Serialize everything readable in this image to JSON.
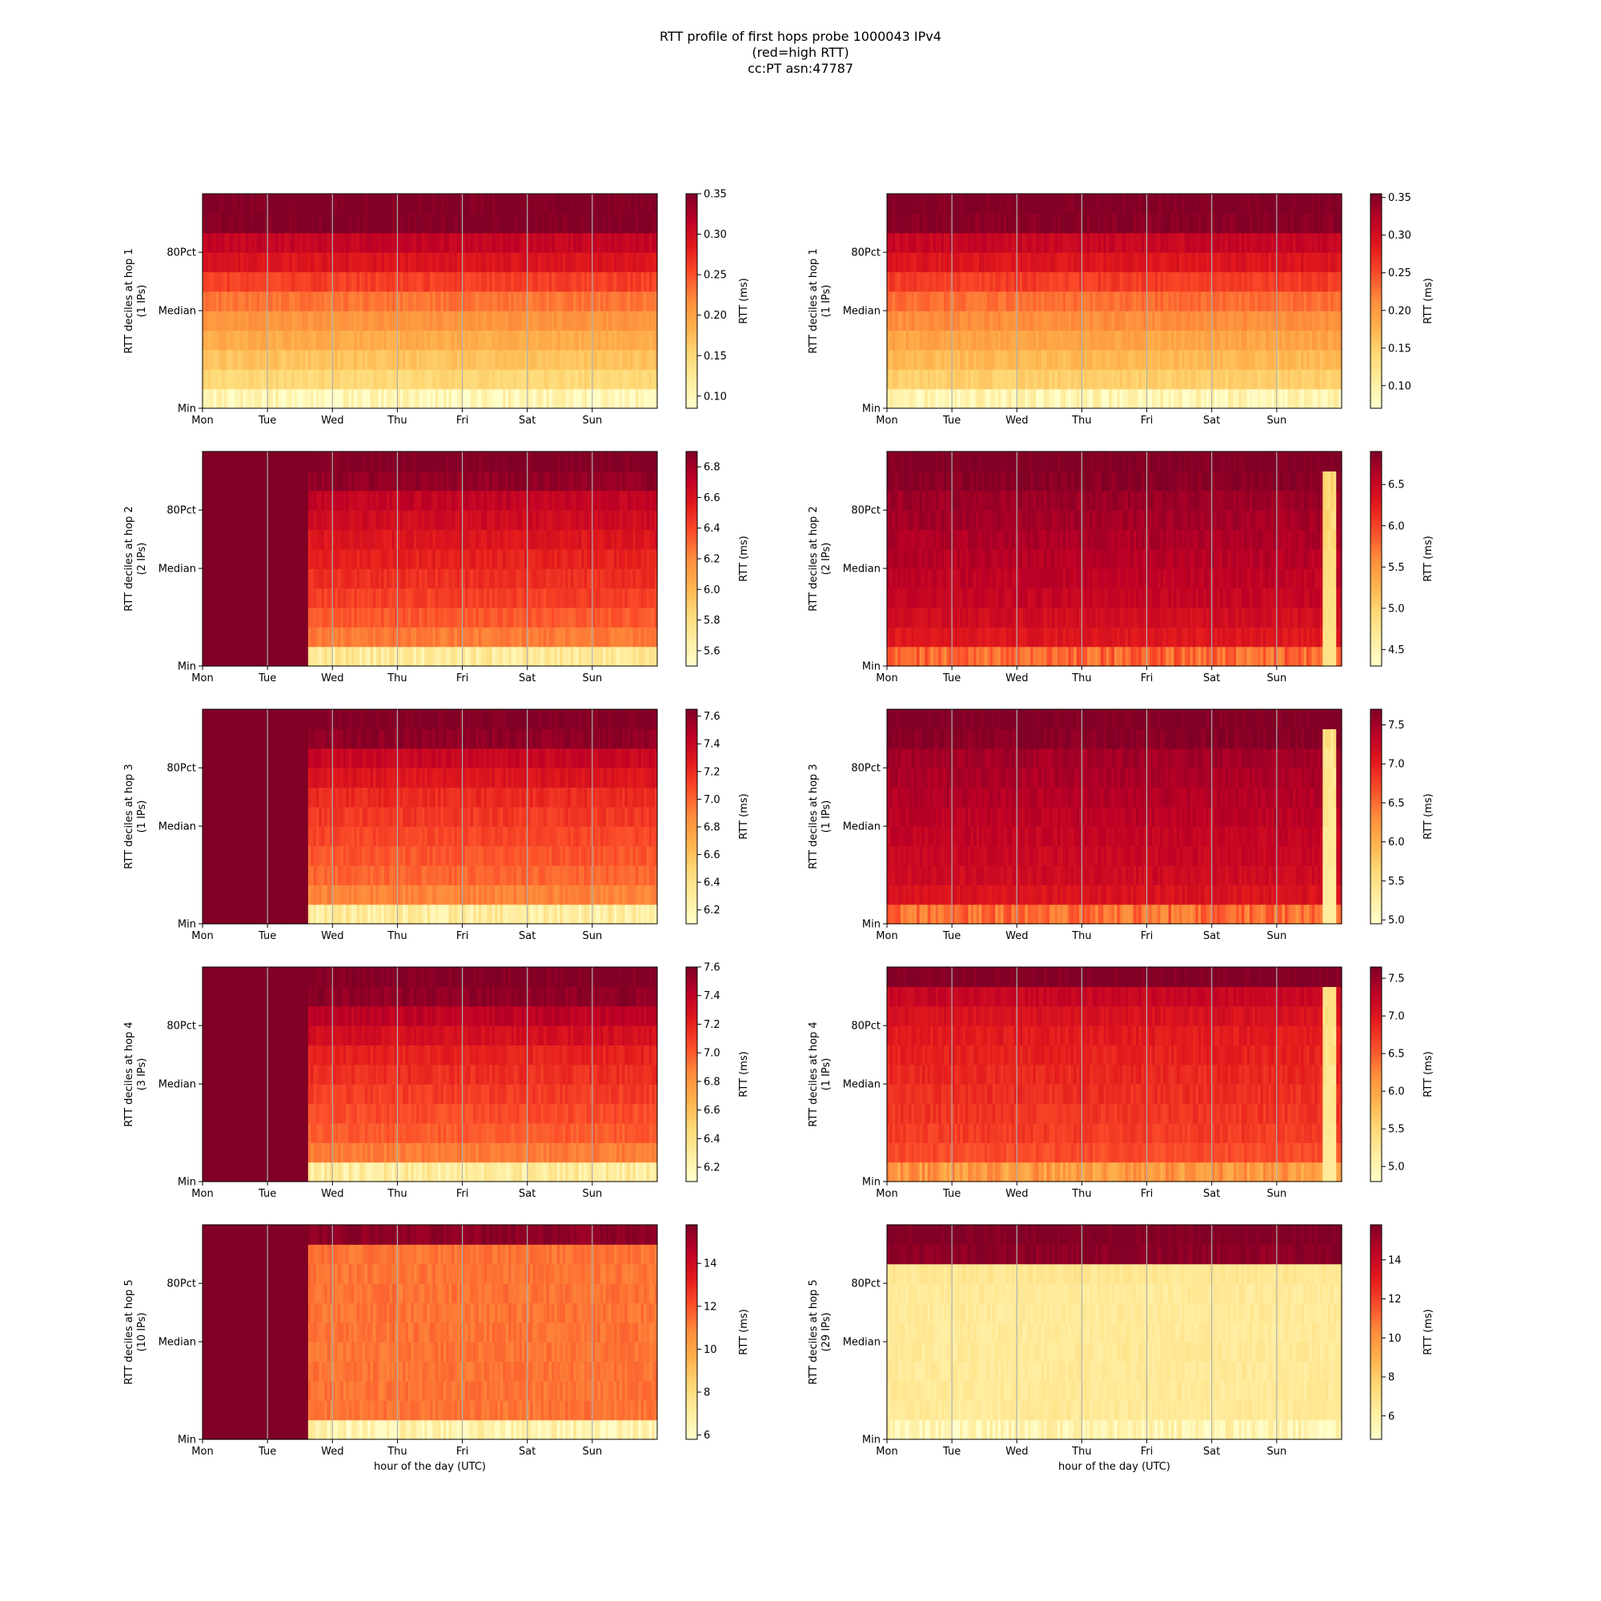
{
  "figure": {
    "title_lines": [
      "RTT profile of first hops probe 1000043 IPv4",
      "(red=high RTT)",
      "cc:PT asn:47787"
    ],
    "colormap": [
      "#ffffcc",
      "#ffeda0",
      "#fed976",
      "#feb24c",
      "#fd8d3c",
      "#fc4e2a",
      "#e31a1c",
      "#bd0026",
      "#800026"
    ],
    "grid_color": "#b0b0b0"
  },
  "chart_data": [
    {
      "type": "heatmap",
      "column": "left",
      "hop": 1,
      "ylabel": [
        "RTT deciles at hop 1",
        "(1 IPs)"
      ],
      "xlabel": "",
      "xticks": [
        "Mon",
        "Tue",
        "Wed",
        "Thu",
        "Fri",
        "Sat",
        "Sun"
      ],
      "yticks": [
        "Min",
        "Median",
        "80Pct"
      ],
      "colorbar": {
        "label": "RTT (ms)",
        "range": [
          0.085,
          0.35
        ],
        "ticks": [
          0.1,
          0.15,
          0.2,
          0.25,
          0.3,
          0.35
        ]
      },
      "start_fraction": 0.0,
      "base_levels": [
        0.1,
        0.15,
        0.17,
        0.19,
        0.21,
        0.23,
        0.26,
        0.29,
        0.31,
        0.35,
        0.35
      ],
      "pre_value": null,
      "spikes": []
    },
    {
      "type": "heatmap",
      "column": "right",
      "hop": 1,
      "ylabel": [
        "RTT deciles at hop 1",
        "(1 IPs)"
      ],
      "xlabel": "",
      "xticks": [
        "Mon",
        "Tue",
        "Wed",
        "Thu",
        "Fri",
        "Sat",
        "Sun"
      ],
      "yticks": [
        "Min",
        "Median",
        "80Pct"
      ],
      "colorbar": {
        "label": "RTT (ms)",
        "range": [
          0.07,
          0.355
        ],
        "ticks": [
          0.1,
          0.15,
          0.2,
          0.25,
          0.3,
          0.35
        ]
      },
      "start_fraction": 0.0,
      "base_levels": [
        0.09,
        0.15,
        0.17,
        0.19,
        0.21,
        0.23,
        0.26,
        0.29,
        0.31,
        0.35,
        0.355
      ],
      "pre_value": null,
      "spikes": []
    },
    {
      "type": "heatmap",
      "column": "left",
      "hop": 2,
      "ylabel": [
        "RTT deciles at hop 2",
        "(2 IPs)"
      ],
      "xlabel": "",
      "xticks": [
        "Mon",
        "Tue",
        "Wed",
        "Thu",
        "Fri",
        "Sat",
        "Sun"
      ],
      "yticks": [
        "Min",
        "Median",
        "80Pct"
      ],
      "colorbar": {
        "label": "RTT (ms)",
        "range": [
          5.5,
          6.9
        ],
        "ticks": [
          5.6,
          5.8,
          6.0,
          6.2,
          6.4,
          6.6,
          6.8
        ]
      },
      "start_fraction": 0.234,
      "base_levels": [
        5.7,
        6.25,
        6.35,
        6.42,
        6.48,
        6.53,
        6.58,
        6.64,
        6.7,
        6.85,
        6.9
      ],
      "pre_value": 6.9,
      "spikes": []
    },
    {
      "type": "heatmap",
      "column": "right",
      "hop": 2,
      "ylabel": [
        "RTT deciles at hop 2",
        "(2 IPs)"
      ],
      "xlabel": "",
      "xticks": [
        "Mon",
        "Tue",
        "Wed",
        "Thu",
        "Fri",
        "Sat",
        "Sun"
      ],
      "yticks": [
        "Min",
        "Median",
        "80Pct"
      ],
      "colorbar": {
        "label": "RTT (ms)",
        "range": [
          4.3,
          6.9
        ],
        "ticks": [
          4.5,
          5.0,
          5.5,
          6.0,
          6.5
        ]
      },
      "start_fraction": 0.0,
      "base_levels": [
        5.8,
        6.3,
        6.4,
        6.5,
        6.55,
        6.6,
        6.65,
        6.7,
        6.75,
        6.85,
        6.9
      ],
      "pre_value": null,
      "spikes": [
        {
          "from": 0.955,
          "to": 0.985,
          "value": 4.8
        }
      ]
    },
    {
      "type": "heatmap",
      "column": "left",
      "hop": 3,
      "ylabel": [
        "RTT deciles at hop 3",
        "(1 IPs)"
      ],
      "xlabel": "",
      "xticks": [
        "Mon",
        "Tue",
        "Wed",
        "Thu",
        "Fri",
        "Sat",
        "Sun"
      ],
      "yticks": [
        "Min",
        "Median",
        "80Pct"
      ],
      "colorbar": {
        "label": "RTT (ms)",
        "range": [
          6.1,
          7.65
        ],
        "ticks": [
          6.2,
          6.4,
          6.6,
          6.8,
          7.0,
          7.2,
          7.4,
          7.6
        ]
      },
      "start_fraction": 0.234,
      "base_levels": [
        6.3,
        6.9,
        7.0,
        7.05,
        7.1,
        7.15,
        7.2,
        7.3,
        7.4,
        7.6,
        7.65
      ],
      "pre_value": 7.65,
      "spikes": []
    },
    {
      "type": "heatmap",
      "column": "right",
      "hop": 3,
      "ylabel": [
        "RTT deciles at hop 3",
        "(1 IPs)"
      ],
      "xlabel": "",
      "xticks": [
        "Mon",
        "Tue",
        "Wed",
        "Thu",
        "Fri",
        "Sat",
        "Sun"
      ],
      "yticks": [
        "Min",
        "Median",
        "80Pct"
      ],
      "colorbar": {
        "label": "RTT (ms)",
        "range": [
          4.95,
          7.7
        ],
        "ticks": [
          5.0,
          5.5,
          6.0,
          6.5,
          7.0,
          7.5
        ]
      },
      "start_fraction": 0.0,
      "base_levels": [
        6.5,
        7.1,
        7.2,
        7.25,
        7.3,
        7.35,
        7.4,
        7.45,
        7.5,
        7.65,
        7.7
      ],
      "pre_value": null,
      "spikes": [
        {
          "from": 0.955,
          "to": 0.985,
          "value": 5.3
        }
      ]
    },
    {
      "type": "heatmap",
      "column": "left",
      "hop": 4,
      "ylabel": [
        "RTT deciles at hop 4",
        "(3 IPs)"
      ],
      "xlabel": "",
      "xticks": [
        "Mon",
        "Tue",
        "Wed",
        "Thu",
        "Fri",
        "Sat",
        "Sun"
      ],
      "yticks": [
        "Min",
        "Median",
        "80Pct"
      ],
      "colorbar": {
        "label": "RTT (ms)",
        "range": [
          6.1,
          7.6
        ],
        "ticks": [
          6.2,
          6.4,
          6.6,
          6.8,
          7.0,
          7.2,
          7.4,
          7.6
        ]
      },
      "start_fraction": 0.234,
      "base_levels": [
        6.3,
        6.9,
        7.0,
        7.05,
        7.1,
        7.15,
        7.2,
        7.3,
        7.4,
        7.55,
        7.6
      ],
      "pre_value": 7.6,
      "spikes": []
    },
    {
      "type": "heatmap",
      "column": "right",
      "hop": 4,
      "ylabel": [
        "RTT deciles at hop 4",
        "(1 IPs)"
      ],
      "xlabel": "",
      "xticks": [
        "Mon",
        "Tue",
        "Wed",
        "Thu",
        "Fri",
        "Sat",
        "Sun"
      ],
      "yticks": [
        "Min",
        "Median",
        "80Pct"
      ],
      "colorbar": {
        "label": "RTT (ms)",
        "range": [
          4.8,
          7.65
        ],
        "ticks": [
          5.0,
          5.5,
          6.0,
          6.5,
          7.0,
          7.5
        ]
      },
      "start_fraction": 0.0,
      "base_levels": [
        6.1,
        6.6,
        6.7,
        6.75,
        6.8,
        6.85,
        6.9,
        6.95,
        7.05,
        7.2,
        7.65
      ],
      "pre_value": null,
      "spikes": [
        {
          "from": 0.955,
          "to": 0.985,
          "value": 5.2
        }
      ]
    },
    {
      "type": "heatmap",
      "column": "left",
      "hop": 5,
      "ylabel": [
        "RTT deciles at hop 5",
        "(10 IPs)"
      ],
      "xlabel": "hour of the day (UTC)",
      "xticks": [
        "Mon",
        "Tue",
        "Wed",
        "Thu",
        "Fri",
        "Sat",
        "Sun"
      ],
      "yticks": [
        "Min",
        "Median",
        "80Pct"
      ],
      "colorbar": {
        "label": "RTT (ms)",
        "range": [
          5.8,
          15.8
        ],
        "ticks": [
          6,
          8,
          10,
          12,
          14
        ]
      },
      "start_fraction": 0.234,
      "base_levels": [
        6.6,
        11.3,
        11.3,
        11.3,
        11.3,
        11.3,
        11.3,
        11.3,
        11.3,
        11.3,
        15.5
      ],
      "pre_value": 15.8,
      "spikes": []
    },
    {
      "type": "heatmap",
      "column": "right",
      "hop": 5,
      "ylabel": [
        "RTT deciles at hop 5",
        "(29 IPs)"
      ],
      "xlabel": "hour of the day (UTC)",
      "xticks": [
        "Mon",
        "Tue",
        "Wed",
        "Thu",
        "Fri",
        "Sat",
        "Sun"
      ],
      "yticks": [
        "Min",
        "Median",
        "80Pct"
      ],
      "colorbar": {
        "label": "RTT (ms)",
        "range": [
          4.8,
          15.8
        ],
        "ticks": [
          6,
          8,
          10,
          12,
          14
        ]
      },
      "start_fraction": 0.0,
      "base_levels": [
        5.6,
        6.4,
        6.4,
        6.4,
        6.4,
        6.4,
        6.4,
        6.4,
        6.6,
        15.5,
        15.8
      ],
      "pre_value": null,
      "spikes": []
    }
  ]
}
